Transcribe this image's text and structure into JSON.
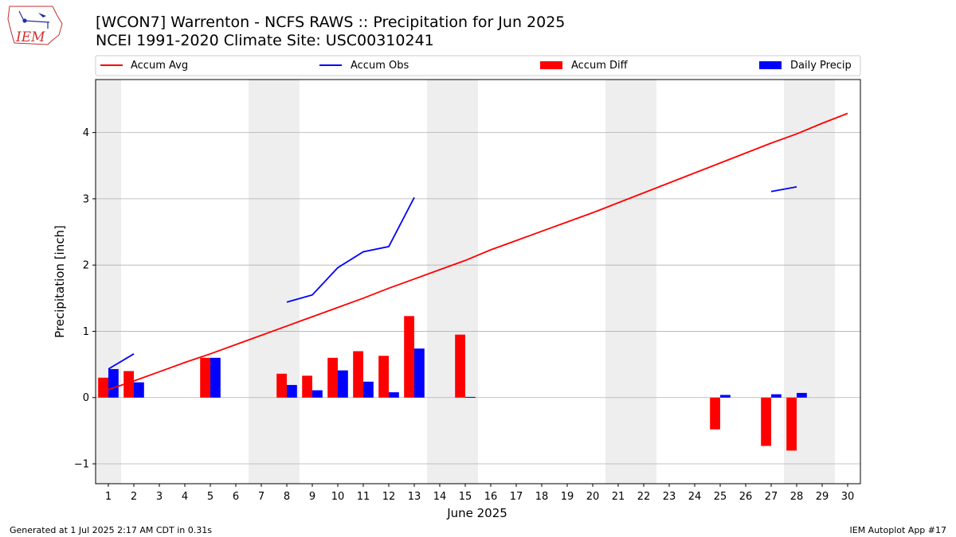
{
  "header": {
    "title_line1": "[WCON7] Warrenton - NCFS RAWS :: Precipitation for Jun 2025",
    "title_line2": "NCEI 1991-2020 Climate Site: USC00310241",
    "logo_text": "IEM"
  },
  "footer": {
    "generated": "Generated at 1 Jul 2025 2:17 AM CDT in 0.31s",
    "app": "IEM Autoplot App #17"
  },
  "colors": {
    "avg": "#ff0000",
    "obs": "#0000ff",
    "diff": "#ff0000",
    "daily": "#0000ff",
    "weekend": "#eeeeee",
    "grid": "#b0b0b0"
  },
  "chart_data": {
    "type": "bar",
    "xlabel": "June 2025",
    "ylabel": "Precipitation [inch]",
    "xlim": [
      0.5,
      30.5
    ],
    "ylim": [
      -1.3,
      4.8
    ],
    "yticks": [
      -1,
      0,
      1,
      2,
      3,
      4
    ],
    "ytick_labels": [
      "−1",
      "0",
      "1",
      "2",
      "3",
      "4"
    ],
    "grid": true,
    "legend_placement": "top",
    "weekend_days": [
      1,
      7,
      8,
      14,
      15,
      21,
      22,
      28,
      29
    ],
    "days": [
      1,
      2,
      3,
      4,
      5,
      6,
      7,
      8,
      9,
      10,
      11,
      12,
      13,
      14,
      15,
      16,
      17,
      18,
      19,
      20,
      21,
      22,
      23,
      24,
      25,
      26,
      27,
      28,
      29,
      30
    ],
    "legend": [
      "Accum Avg",
      "Accum Obs",
      "Accum Diff",
      "Daily Precip"
    ],
    "series": [
      {
        "name": "Accum Avg",
        "type": "line",
        "values": [
          0.12,
          0.25,
          0.39,
          0.53,
          0.66,
          0.8,
          0.94,
          1.08,
          1.22,
          1.36,
          1.5,
          1.65,
          1.79,
          1.93,
          2.07,
          2.23,
          2.37,
          2.51,
          2.65,
          2.79,
          2.94,
          3.09,
          3.24,
          3.39,
          3.54,
          3.69,
          3.84,
          3.98,
          4.14,
          4.29
        ]
      },
      {
        "name": "Accum Obs",
        "type": "line",
        "values": [
          0.43,
          0.66,
          null,
          null,
          null,
          null,
          null,
          1.44,
          1.55,
          1.96,
          2.2,
          2.28,
          3.02,
          null,
          null,
          null,
          null,
          null,
          null,
          null,
          null,
          null,
          null,
          null,
          null,
          null,
          3.11,
          3.18,
          null,
          null
        ]
      },
      {
        "name": "Accum Diff",
        "type": "bar",
        "values": [
          0.3,
          0.4,
          null,
          null,
          0.6,
          null,
          null,
          0.36,
          0.33,
          0.6,
          0.7,
          0.63,
          1.23,
          null,
          0.95,
          null,
          null,
          null,
          null,
          null,
          null,
          null,
          null,
          null,
          -0.48,
          null,
          -0.73,
          -0.8,
          null,
          null
        ]
      },
      {
        "name": "Daily Precip",
        "type": "bar",
        "values": [
          0.43,
          0.23,
          null,
          null,
          0.6,
          null,
          null,
          0.19,
          0.11,
          0.41,
          0.24,
          0.08,
          0.74,
          null,
          0.01,
          null,
          null,
          null,
          null,
          null,
          null,
          null,
          null,
          null,
          0.04,
          null,
          0.05,
          0.07,
          null,
          null
        ]
      }
    ]
  }
}
